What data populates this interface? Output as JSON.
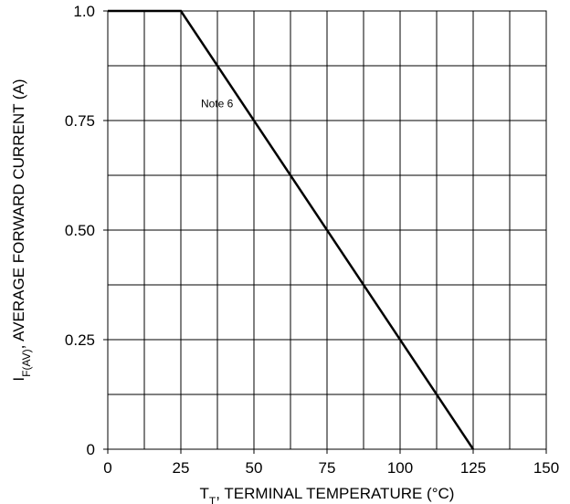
{
  "chart_data": {
    "type": "line",
    "title": "",
    "xlabel": {
      "main": "T",
      "sub": "T",
      "rest": ", TERMINAL TEMPERATURE (°C)"
    },
    "ylabel": {
      "main": "I",
      "sub": "F(AV)",
      "rest": ", AVERAGE FORWARD CURRENT (A)"
    },
    "xlim": [
      0,
      150
    ],
    "ylim": [
      0,
      1.0
    ],
    "grid": true,
    "x_ticks": [
      {
        "value": 0,
        "label": "0"
      },
      {
        "value": 25,
        "label": "25"
      },
      {
        "value": 50,
        "label": "50"
      },
      {
        "value": 75,
        "label": "75"
      },
      {
        "value": 100,
        "label": "100"
      },
      {
        "value": 125,
        "label": "125"
      },
      {
        "value": 150,
        "label": "150"
      }
    ],
    "y_ticks": [
      {
        "value": 0,
        "label": "0"
      },
      {
        "value": 0.25,
        "label": "0.25"
      },
      {
        "value": 0.5,
        "label": "0.50"
      },
      {
        "value": 0.75,
        "label": "0.75"
      },
      {
        "value": 1.0,
        "label": "1.0"
      }
    ],
    "x_minor_grid": [
      12.5,
      37.5,
      62.5,
      87.5,
      112.5,
      137.5
    ],
    "y_minor_grid": [
      0.125,
      0.375,
      0.625,
      0.875
    ],
    "series": [
      {
        "x": [
          0,
          25,
          125
        ],
        "y": [
          1.0,
          1.0,
          0
        ]
      }
    ],
    "annotations": [
      {
        "text": "Note 6",
        "x": 37.5,
        "y": 0.78
      }
    ]
  }
}
